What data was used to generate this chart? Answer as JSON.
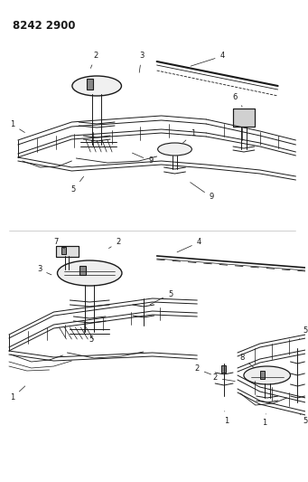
{
  "title": "8242 2900",
  "bg_color": "#ffffff",
  "line_color": "#1a1a1a",
  "figsize": [
    3.41,
    5.33
  ],
  "dpi": 100,
  "title_fontsize": 8.5,
  "label_fontsize": 6.0
}
